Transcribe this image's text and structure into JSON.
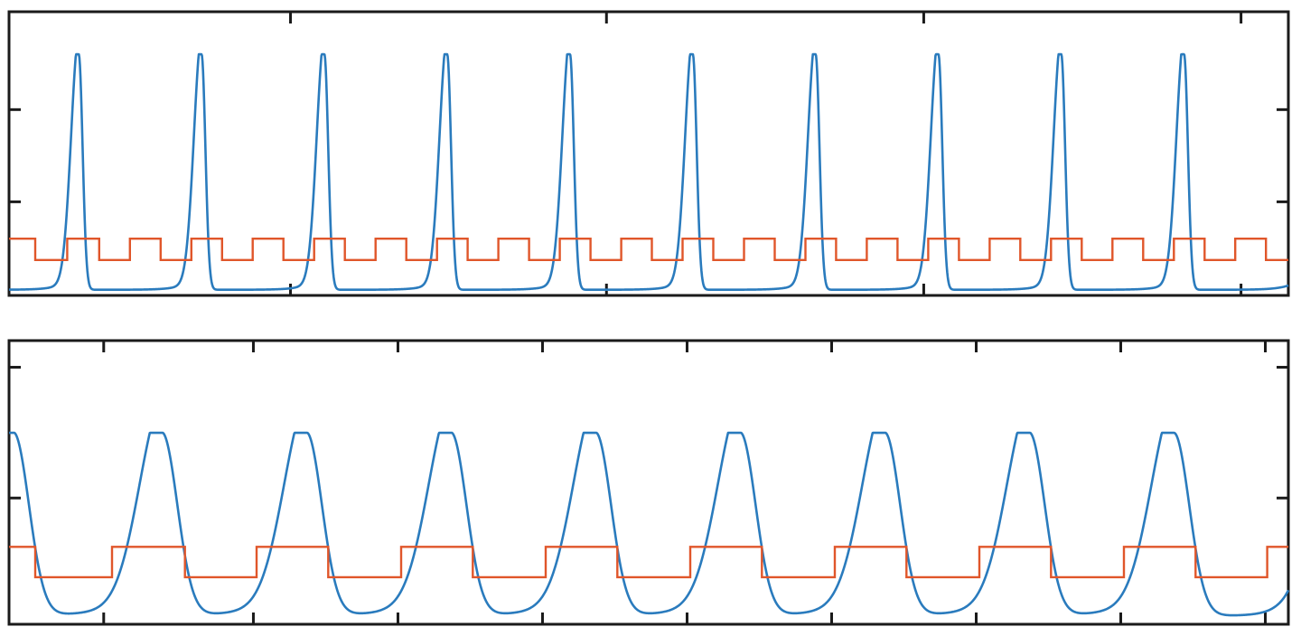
{
  "colors": {
    "waveform": "#2a7bbd",
    "square": "#e0562a",
    "axes": "#1a1a1a"
  },
  "chart_data": [
    {
      "type": "line",
      "title": "",
      "xlabel": "",
      "ylabel": "",
      "xlim": [
        0,
        1
      ],
      "ylim": [
        0,
        1
      ],
      "grid": false,
      "x_ticks": [
        0.22,
        0.467,
        0.715,
        0.963
      ],
      "y_ticks": [
        0.33,
        0.655
      ],
      "series": [
        {
          "kind": "pulse-train",
          "color": "#2a7bbd",
          "peak_x": [
            0.0545,
            0.1505,
            0.2465,
            0.3425,
            0.4385,
            0.5345,
            0.6305,
            0.7265,
            0.8225,
            0.9185
          ],
          "peak_y": 0.85,
          "baseline_y": 0.02,
          "rise_width": 0.006,
          "fall_width": 0.003,
          "tail_tau": 0.01,
          "tail_amp": 0.07,
          "end_y": 0.035
        },
        {
          "kind": "square-wave",
          "color": "#e0562a",
          "high_y": 0.2,
          "low_y": 0.125,
          "x": [
            0,
            0.0205,
            0.0455,
            0.0705,
            0.0945,
            0.1185,
            0.1425,
            0.1665,
            0.1905,
            0.2145,
            0.2385,
            0.2625,
            0.2865,
            0.3105,
            0.3345,
            0.3585,
            0.3825,
            0.4065,
            0.4305,
            0.4545,
            0.4785,
            0.5025,
            0.5265,
            0.5505,
            0.5745,
            0.5985,
            0.6225,
            0.6465,
            0.6705,
            0.6945,
            0.7185,
            0.7425,
            0.7665,
            0.7905,
            0.8145,
            0.8385,
            0.8625,
            0.8865,
            0.9105,
            0.9345,
            0.9585,
            0.9825,
            1
          ],
          "start_level": "high"
        }
      ]
    },
    {
      "type": "line",
      "title": "",
      "xlabel": "",
      "ylabel": "",
      "xlim": [
        0,
        1
      ],
      "ylim": [
        0,
        1
      ],
      "grid": false,
      "x_ticks": [
        0.074,
        0.191,
        0.304,
        0.417,
        0.53,
        0.643,
        0.756,
        0.869,
        0.982
      ],
      "y_ticks": [
        0.445,
        0.906
      ],
      "series": [
        {
          "kind": "pulse-train",
          "color": "#2a7bbd",
          "peak_x": [
            0.0035,
            0.1195,
            0.2325,
            0.3455,
            0.4585,
            0.5715,
            0.6845,
            0.7975,
            0.9105
          ],
          "peak_y": 0.675,
          "baseline_y": 0.03,
          "rise_width": 0.018,
          "fall_width": 0.012,
          "tail_tau": 0.025,
          "tail_amp": 0.12,
          "end_y": 0.12
        },
        {
          "kind": "square-wave",
          "color": "#e0562a",
          "high_y": 0.273,
          "low_y": 0.166,
          "x": [
            0,
            0.0205,
            0.0805,
            0.1375,
            0.1935,
            0.2495,
            0.3065,
            0.3625,
            0.4195,
            0.4755,
            0.5325,
            0.5885,
            0.6455,
            0.7015,
            0.7585,
            0.8145,
            0.8715,
            0.9275,
            0.9835,
            1
          ],
          "start_level": "high"
        }
      ]
    }
  ]
}
